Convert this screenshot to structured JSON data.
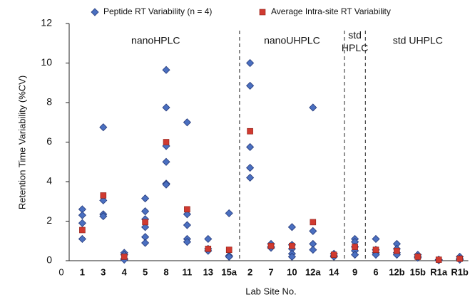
{
  "chart_data": {
    "type": "categorical-scatter",
    "x_label": "Lab Site No.",
    "y_label": "Retention Time Variability (%CV)",
    "categories": [
      "0",
      "1",
      "3",
      "4",
      "5",
      "8",
      "11",
      "13",
      "15a",
      "2",
      "7",
      "10",
      "12a",
      "14",
      "9",
      "6",
      "12b",
      "15b",
      "R1a",
      "R1b"
    ],
    "series": [
      {
        "name": "Peptide RT Variability (n = 4)",
        "color": "#4a6fc0",
        "marker": "diamond",
        "values": [
          null,
          [
            2.6,
            2.3,
            1.9,
            1.1
          ],
          [
            6.75,
            3.05,
            2.35,
            2.25
          ],
          [
            0.4,
            0.3,
            0.1,
            0.05
          ],
          [
            3.15,
            2.5,
            2.1,
            1.7,
            1.2,
            0.9
          ],
          [
            9.65,
            7.75,
            5.8,
            5.0,
            3.9,
            3.85
          ],
          [
            7.0,
            2.35,
            1.8,
            1.1,
            0.95
          ],
          [
            1.1,
            0.6,
            0.5
          ],
          [
            2.4,
            0.25,
            0.2
          ],
          [
            10.0,
            8.85,
            5.75,
            4.7,
            4.2
          ],
          [
            0.85,
            0.7,
            0.65
          ],
          [
            1.7,
            0.8,
            0.6,
            0.35,
            0.2
          ],
          [
            7.75,
            1.5,
            0.85,
            0.55
          ],
          [
            0.35,
            0.25,
            0.2
          ],
          [
            1.1,
            0.95,
            0.7,
            0.5,
            0.3
          ],
          [
            1.1,
            0.55,
            0.4,
            0.3
          ],
          [
            0.85,
            0.6,
            0.4,
            0.3
          ],
          [
            0.3,
            0.2,
            0.15
          ],
          [
            0.05,
            0.05,
            0.02
          ],
          [
            0.2,
            0.1,
            0.05
          ]
        ]
      },
      {
        "name": "Average Intra-site RT Variability",
        "color": "#d03a30",
        "marker": "square",
        "values": [
          null,
          1.55,
          3.3,
          0.2,
          1.95,
          6.0,
          2.6,
          0.6,
          0.55,
          6.55,
          0.75,
          0.75,
          1.95,
          0.3,
          0.7,
          0.55,
          0.5,
          0.2,
          0.05,
          0.1
        ]
      }
    ],
    "regions": [
      {
        "label": "nanoHPLC",
        "from": "1",
        "to": "15a"
      },
      {
        "label": "nanoUHPLC",
        "from": "2",
        "to": "14"
      },
      {
        "label": "std HPLC",
        "from": "9",
        "to": "9"
      },
      {
        "label": "std UHPLC",
        "from": "6",
        "to": "R1b"
      }
    ],
    "ylim": [
      0,
      12
    ],
    "yticks": [
      0,
      2,
      4,
      6,
      8,
      10,
      12
    ]
  }
}
